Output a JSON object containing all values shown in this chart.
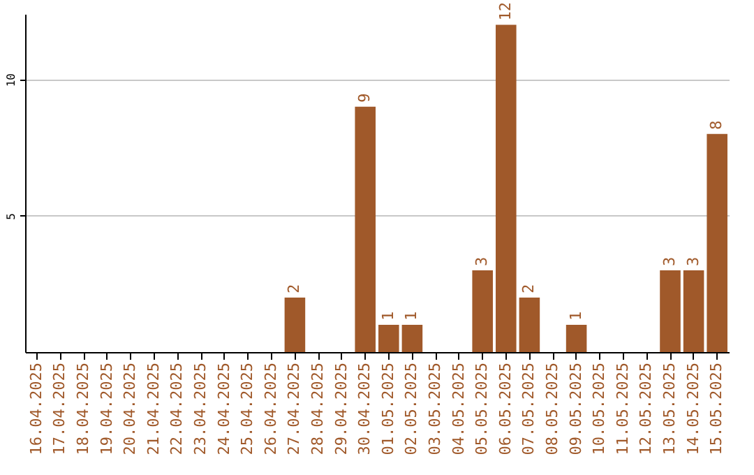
{
  "chart_data": {
    "type": "bar",
    "categories": [
      "16.04.2025",
      "17.04.2025",
      "18.04.2025",
      "19.04.2025",
      "20.04.2025",
      "21.04.2025",
      "22.04.2025",
      "23.04.2025",
      "24.04.2025",
      "25.04.2025",
      "26.04.2025",
      "27.04.2025",
      "28.04.2025",
      "29.04.2025",
      "30.04.2025",
      "01.05.2025",
      "02.05.2025",
      "03.05.2025",
      "04.05.2025",
      "05.05.2025",
      "06.05.2025",
      "07.05.2025",
      "08.05.2025",
      "09.05.2025",
      "10.05.2025",
      "11.05.2025",
      "12.05.2025",
      "13.05.2025",
      "14.05.2025",
      "15.05.2025"
    ],
    "values": [
      0,
      0,
      0,
      0,
      0,
      0,
      0,
      0,
      0,
      0,
      0,
      2,
      0,
      0,
      9,
      1,
      1,
      0,
      0,
      3,
      12,
      2,
      0,
      1,
      0,
      0,
      0,
      3,
      3,
      8
    ],
    "value_labels": [
      null,
      null,
      null,
      null,
      null,
      null,
      null,
      null,
      null,
      null,
      null,
      "2",
      null,
      null,
      "9",
      "1",
      "1",
      null,
      null,
      "3",
      "12",
      "2",
      null,
      "1",
      null,
      null,
      null,
      "3",
      "3",
      "8"
    ],
    "color": "#a0592a",
    "ylim": [
      0,
      12.4
    ],
    "yticks": [
      5,
      10
    ],
    "grid": "y"
  }
}
